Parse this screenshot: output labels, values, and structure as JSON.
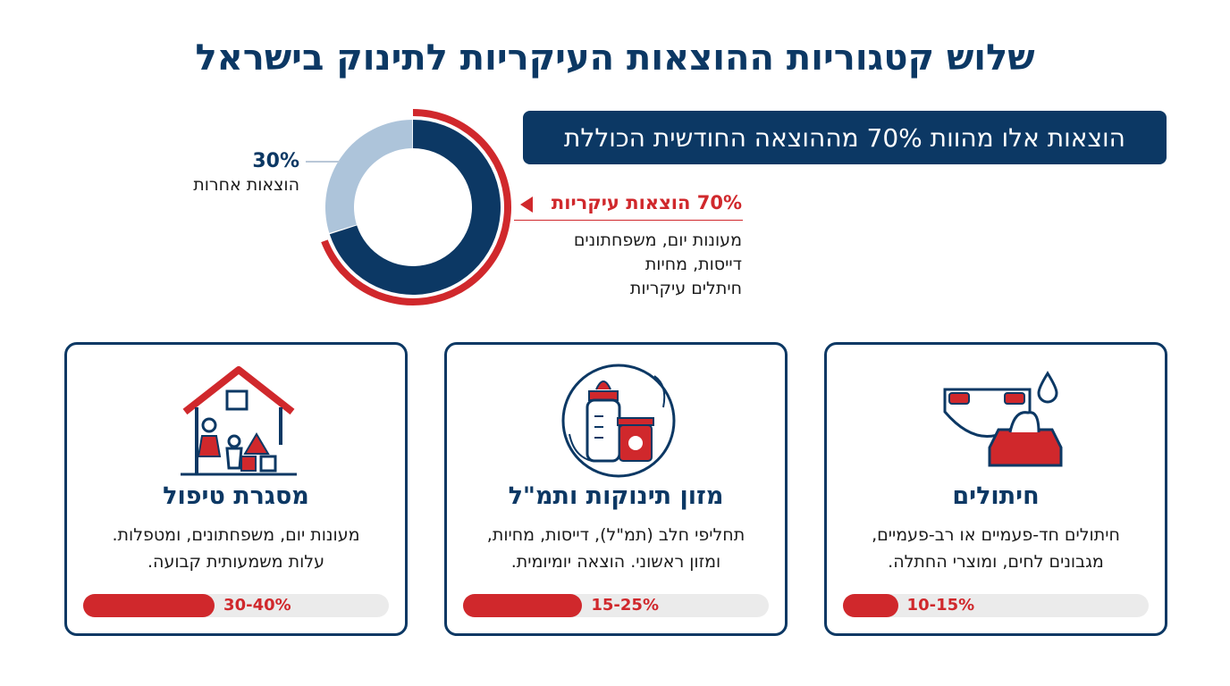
{
  "title": "שלוש קטגוריות ההוצאות העיקריות לתינוק בישראל",
  "banner": "הוצאות אלו מהוות 70% מההוצאה החודשית הכוללת",
  "chart_data": {
    "type": "pie",
    "style": "donut",
    "categories": [
      "הוצאות עיקריות",
      "הוצאות אחרות"
    ],
    "values": [
      70,
      30
    ],
    "colors": [
      "#0c3864",
      "#adc4da"
    ],
    "highlight_color": "#d0282c",
    "labels": {
      "main_pct": "70%",
      "main_label": "הוצאות עיקריות",
      "main_desc": [
        "מעונות יום, משפחתונים",
        "דייסות, מחיות",
        "חיתלים עיקריות"
      ],
      "other_pct": "30%",
      "other_label": "הוצאות אחרות"
    }
  },
  "cards": [
    {
      "icon": "house-family-icon",
      "title": "מסגרת טיפול",
      "desc": [
        "מעונות יום, משפחתונים, ומטפלות.",
        "עלות משמעותית קבועה."
      ],
      "range": "30-40%",
      "fill": 0.43
    },
    {
      "icon": "baby-bottle-food-icon",
      "title": "מזון תינוקות ותמ\"ל",
      "desc": [
        "תחליפי חלב (תמ\"ל), דייסות, מחיות,",
        "ומזון ראשוני. הוצאה יומיומית."
      ],
      "range": "15-25%",
      "fill": 0.39
    },
    {
      "icon": "diaper-wipes-icon",
      "title": "חיתולים",
      "desc": [
        "חיתולים חד-פעמיים או רב-פעמיים,",
        "מגבונים לחים, ומוצרי החתלה."
      ],
      "range": "10-15%",
      "fill": 0.18
    }
  ]
}
